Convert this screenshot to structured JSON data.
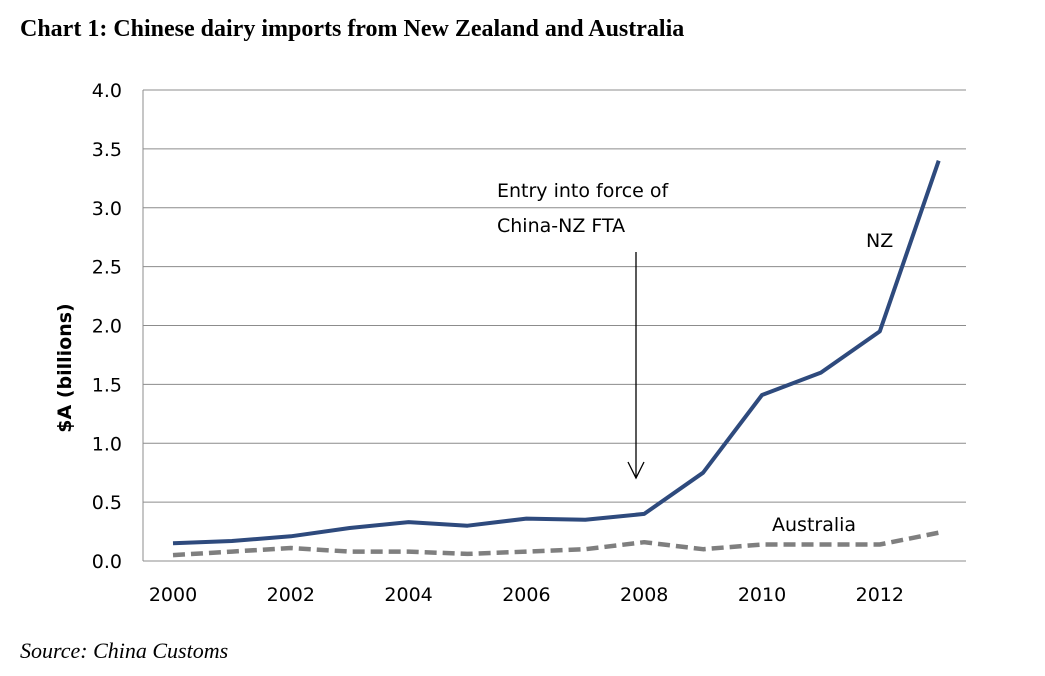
{
  "title": "Chart 1: Chinese dairy imports from New Zealand and Australia",
  "source": "Source: China Customs",
  "colors": {
    "nz": "#2e4a7d",
    "australia": "#7f7f7f",
    "grid": "#8c8c8c"
  },
  "chart_data": {
    "type": "line",
    "ylabel": "$A (billions)",
    "xlabel": "",
    "ylim": [
      0,
      4
    ],
    "xlim": [
      2000,
      2013
    ],
    "y_ticks": [
      "0.0",
      "0.5",
      "1.0",
      "1.5",
      "2.0",
      "2.5",
      "3.0",
      "3.5",
      "4.0"
    ],
    "x_ticks": [
      "2000",
      "2002",
      "2004",
      "2006",
      "2008",
      "2010",
      "2012"
    ],
    "grid": true,
    "x": [
      2000,
      2001,
      2002,
      2003,
      2004,
      2005,
      2006,
      2007,
      2008,
      2009,
      2010,
      2011,
      2012,
      2013
    ],
    "series": [
      {
        "name": "NZ",
        "style": "solid",
        "values": [
          0.15,
          0.17,
          0.21,
          0.28,
          0.33,
          0.3,
          0.36,
          0.35,
          0.4,
          0.75,
          1.41,
          1.6,
          1.95,
          3.4
        ]
      },
      {
        "name": "Australia",
        "style": "dashed",
        "values": [
          0.05,
          0.08,
          0.11,
          0.08,
          0.08,
          0.06,
          0.08,
          0.1,
          0.16,
          0.1,
          0.14,
          0.14,
          0.14,
          0.24
        ]
      }
    ],
    "annotations": [
      {
        "lines": [
          "Entry into force of",
          "China-NZ FTA"
        ],
        "points_to_x": 2008
      }
    ]
  }
}
